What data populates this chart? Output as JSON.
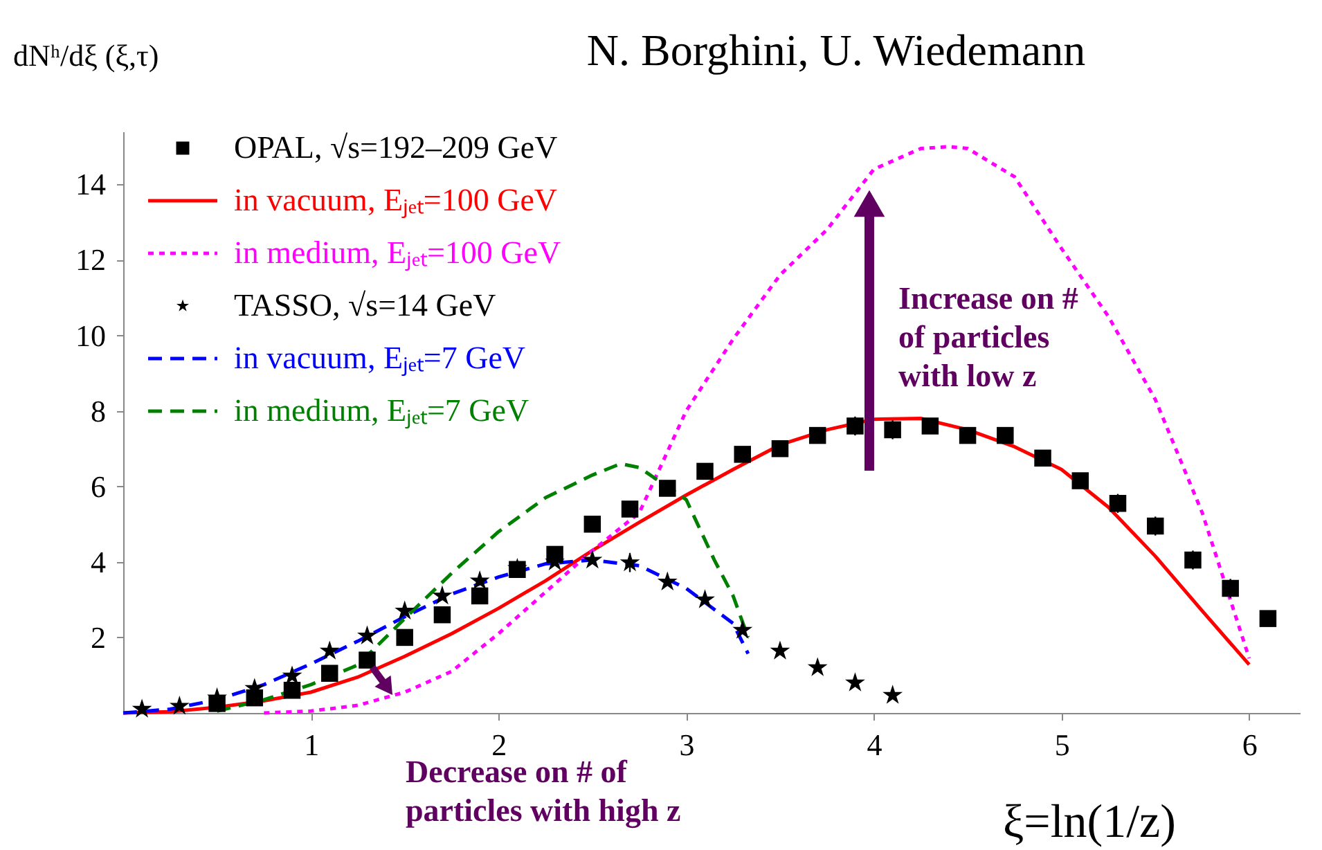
{
  "chart_data": {
    "type": "line",
    "title": "N. Borghini, U. Wiedemann",
    "xlabel": "ξ=ln(1/z)",
    "ylabel": "dNʰ/dξ (ξ,τ)",
    "xlim": [
      0,
      6.27
    ],
    "ylim": [
      0,
      15.4
    ],
    "xticks": [
      1,
      2,
      3,
      4,
      5,
      6
    ],
    "yticks": [
      2,
      4,
      6,
      8,
      10,
      12,
      14
    ],
    "grid": false,
    "legend": "top left",
    "annotations": [
      "Increase on # of particles with low z",
      "Decrease on # of particles with high z"
    ],
    "series": [
      {
        "name": "OPAL, √s=192–209 GeV",
        "type": "scatter",
        "marker": "square",
        "color": "#000000",
        "x": [
          0.5,
          0.7,
          0.9,
          1.1,
          1.3,
          1.5,
          1.7,
          1.9,
          2.1,
          2.3,
          2.5,
          2.7,
          2.9,
          3.1,
          3.3,
          3.5,
          3.7,
          3.9,
          4.1,
          4.3,
          4.5,
          4.7,
          4.9,
          5.1,
          5.3,
          5.5,
          5.7,
          5.9,
          6.1
        ],
        "values": [
          0.25,
          0.4,
          0.6,
          1.05,
          1.4,
          2.0,
          2.6,
          3.1,
          3.8,
          4.2,
          5.0,
          5.4,
          5.95,
          6.4,
          6.85,
          7.0,
          7.35,
          7.6,
          7.5,
          7.6,
          7.35,
          7.35,
          6.75,
          6.15,
          5.55,
          4.95,
          4.05,
          3.3,
          2.5
        ],
        "errors": [
          null,
          null,
          null,
          null,
          null,
          null,
          null,
          null,
          null,
          null,
          0.15,
          0.15,
          0.2,
          0.2,
          0.2,
          0.2,
          0.2,
          0.25,
          0.25,
          0.2,
          0.2,
          0.2,
          0.2,
          0.2,
          0.25,
          0.25,
          0.25,
          0.25,
          0.2
        ]
      },
      {
        "name": "in vacuum, Eⱼₑₜ=100 GeV",
        "line_style": "solid",
        "color": "#ff0000",
        "x": [
          0,
          0.25,
          0.5,
          0.75,
          1,
          1.25,
          1.5,
          1.75,
          2,
          2.25,
          2.5,
          2.75,
          3,
          3.25,
          3.5,
          3.75,
          4,
          4.25,
          4.5,
          4.75,
          5,
          5.25,
          5.5,
          5.75,
          6
        ],
        "values": [
          0,
          0.03,
          0.15,
          0.32,
          0.55,
          0.95,
          1.5,
          2.1,
          2.77,
          3.5,
          4.3,
          5.05,
          5.77,
          6.45,
          7.1,
          7.5,
          7.78,
          7.8,
          7.5,
          7.05,
          6.45,
          5.45,
          4.15,
          2.7,
          1.28
        ]
      },
      {
        "name": "in medium, Eⱼₑₜ=100 GeV",
        "line_style": "dotted",
        "color": "#ff00ff",
        "x": [
          0.75,
          1,
          1.25,
          1.5,
          1.75,
          2,
          2.25,
          2.5,
          2.75,
          3,
          3.25,
          3.5,
          3.75,
          4,
          4.25,
          4.4,
          4.5,
          4.75,
          5,
          5.25,
          5.5,
          5.75,
          6
        ],
        "values": [
          0,
          0.05,
          0.2,
          0.55,
          1.1,
          2.1,
          3.2,
          4.3,
          5.3,
          8.0,
          9.9,
          11.6,
          12.8,
          14.4,
          14.95,
          15.0,
          14.95,
          14.2,
          12.3,
          10.5,
          8.3,
          5.3,
          1.45
        ]
      },
      {
        "name": "TASSO, √s=14 GeV",
        "type": "scatter",
        "marker": "star",
        "color": "#000000",
        "x": [
          0.1,
          0.3,
          0.5,
          0.7,
          0.9,
          1.1,
          1.3,
          1.5,
          1.7,
          1.9,
          2.1,
          2.3,
          2.5,
          2.7,
          2.9,
          3.1,
          3.3,
          3.5,
          3.7,
          3.9,
          4.1
        ],
        "values": [
          0.1,
          0.18,
          0.4,
          0.65,
          0.98,
          1.64,
          2.04,
          2.7,
          3.1,
          3.5,
          3.83,
          4.0,
          4.05,
          3.98,
          3.47,
          3.0,
          2.19,
          1.64,
          1.2,
          0.8,
          0.47
        ],
        "errors": [
          null,
          null,
          null,
          null,
          null,
          null,
          null,
          null,
          null,
          null,
          null,
          null,
          null,
          0.25,
          null,
          null,
          null,
          null,
          null,
          null,
          null
        ]
      },
      {
        "name": "in vacuum, Eⱼₑₜ=7 GeV",
        "line_style": "dashed",
        "color": "#0000ff",
        "x": [
          0,
          0.25,
          0.5,
          0.75,
          1,
          1.25,
          1.5,
          1.75,
          2,
          2.25,
          2.5,
          2.75,
          3,
          3.25,
          3.33
        ],
        "values": [
          0,
          0.1,
          0.35,
          0.75,
          1.3,
          1.9,
          2.55,
          3.15,
          3.6,
          3.95,
          4.05,
          3.9,
          3.3,
          2.37,
          1.57
        ]
      },
      {
        "name": "in medium, Eⱼₑₜ=7 GeV",
        "line_style": "dashed",
        "color": "#008000",
        "x": [
          0.5,
          0.75,
          1,
          1.25,
          1.5,
          1.75,
          2,
          2.25,
          2.5,
          2.65,
          2.75,
          3,
          3.15,
          3.25,
          3.33
        ],
        "values": [
          0.05,
          0.35,
          0.75,
          1.27,
          2.5,
          3.7,
          4.8,
          5.7,
          6.3,
          6.6,
          6.5,
          5.65,
          4.05,
          3.1,
          2.0
        ]
      }
    ]
  }
}
